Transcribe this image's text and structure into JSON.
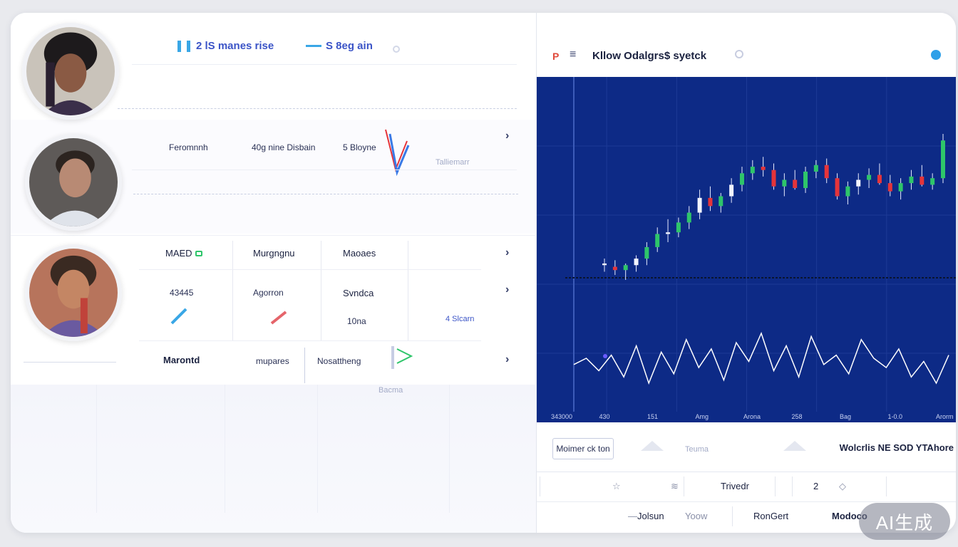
{
  "left": {
    "header": {
      "item1": "2 lS manes rise",
      "item2": "S 8eg ain"
    },
    "row2": {
      "col1": "Feromnnh",
      "col2": "40g nine Disbain",
      "col3": "5 Bloyne",
      "faint1": "Talliemarr"
    },
    "row3": {
      "h1": "MAED",
      "h2": "Murgngnu",
      "h3": "Maoaes",
      "r1c1": "43445",
      "r1c2": "Agorron",
      "r1c3": "Svndca",
      "r1c4": "4 Slcarn",
      "r1c3b": "10na",
      "r2c1": "Marontd",
      "r2c2": "mupares",
      "r2c3": "Nosattheng",
      "below": "Bacma"
    }
  },
  "right": {
    "title": "Kllow Odalgrs$ syetck",
    "chart_data": {
      "type": "candlestick",
      "x_ticks": [
        "343000",
        "430",
        "151",
        "Amg",
        "Arona",
        "258",
        "Bag",
        "1-0.0",
        "Arorm"
      ],
      "candles": [
        {
          "o": 372,
          "h": 376,
          "l": 368,
          "c": 373
        },
        {
          "o": 371,
          "h": 375,
          "l": 366,
          "c": 369
        },
        {
          "o": 369,
          "h": 373,
          "l": 363,
          "c": 372
        },
        {
          "o": 372,
          "h": 378,
          "l": 368,
          "c": 376
        },
        {
          "o": 376,
          "h": 386,
          "l": 372,
          "c": 383
        },
        {
          "o": 383,
          "h": 395,
          "l": 380,
          "c": 391
        },
        {
          "o": 391,
          "h": 400,
          "l": 386,
          "c": 392
        },
        {
          "o": 392,
          "h": 401,
          "l": 389,
          "c": 398
        },
        {
          "o": 398,
          "h": 408,
          "l": 394,
          "c": 404
        },
        {
          "o": 404,
          "h": 418,
          "l": 400,
          "c": 413
        },
        {
          "o": 413,
          "h": 420,
          "l": 405,
          "c": 408
        },
        {
          "o": 408,
          "h": 416,
          "l": 404,
          "c": 414
        },
        {
          "o": 414,
          "h": 425,
          "l": 410,
          "c": 421
        },
        {
          "o": 421,
          "h": 432,
          "l": 417,
          "c": 428
        },
        {
          "o": 428,
          "h": 436,
          "l": 424,
          "c": 432
        },
        {
          "o": 432,
          "h": 438,
          "l": 426,
          "c": 430
        },
        {
          "o": 430,
          "h": 434,
          "l": 418,
          "c": 420
        },
        {
          "o": 420,
          "h": 428,
          "l": 414,
          "c": 424
        },
        {
          "o": 424,
          "h": 430,
          "l": 418,
          "c": 419
        },
        {
          "o": 419,
          "h": 432,
          "l": 416,
          "c": 429
        },
        {
          "o": 429,
          "h": 436,
          "l": 425,
          "c": 433
        },
        {
          "o": 433,
          "h": 437,
          "l": 422,
          "c": 425
        },
        {
          "o": 425,
          "h": 428,
          "l": 412,
          "c": 414
        },
        {
          "o": 414,
          "h": 423,
          "l": 409,
          "c": 420
        },
        {
          "o": 420,
          "h": 428,
          "l": 415,
          "c": 424
        },
        {
          "o": 424,
          "h": 431,
          "l": 419,
          "c": 427
        },
        {
          "o": 427,
          "h": 434,
          "l": 421,
          "c": 422
        },
        {
          "o": 422,
          "h": 427,
          "l": 414,
          "c": 417
        },
        {
          "o": 417,
          "h": 425,
          "l": 412,
          "c": 422
        },
        {
          "o": 422,
          "h": 430,
          "l": 418,
          "c": 426
        },
        {
          "o": 426,
          "h": 433,
          "l": 420,
          "c": 421
        },
        {
          "o": 421,
          "h": 428,
          "l": 418,
          "c": 425
        },
        {
          "o": 425,
          "h": 452,
          "l": 422,
          "c": 448
        }
      ],
      "indicator": [
        12,
        14,
        10,
        15,
        8,
        18,
        6,
        16,
        9,
        20,
        11,
        17,
        7,
        19,
        13,
        22,
        10,
        18,
        8,
        21,
        12,
        15,
        9,
        20,
        14,
        11,
        17,
        8,
        13,
        6,
        15
      ]
    },
    "bar": {
      "button": "Moimer ck ton",
      "mid": "Teuma",
      "title": "Wolcrlis NE SOD YTAhore"
    },
    "row1": {
      "c1": "Trivedr",
      "c2": "2"
    },
    "row2": {
      "c1": "Jolsun",
      "c2": "Yoow",
      "c3": "RonGert",
      "c4": "Modoco"
    }
  },
  "badge": "AI生成",
  "colors": {
    "chart_bg": "#0d2a86",
    "up": "#2ec56a",
    "down": "#e5343a",
    "accent": "#3b54c7"
  }
}
